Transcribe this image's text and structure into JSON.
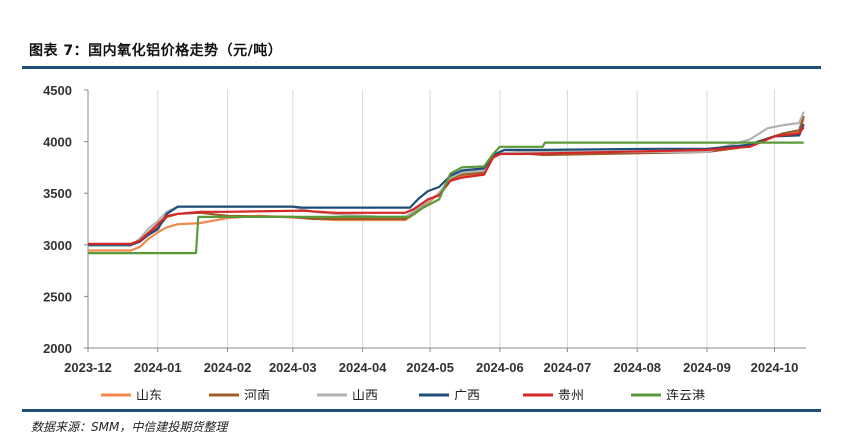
{
  "header": {
    "title": "图表 7：国内氧化铝价格走势（元/吨）"
  },
  "footer": {
    "source": "数据来源：SMM，中信建投期货整理"
  },
  "chart_data": {
    "type": "line",
    "title": "图表 7：国内氧化铝价格走势（元/吨）",
    "xlabel": "",
    "ylabel": "",
    "ylim": [
      2000,
      4500
    ],
    "yticks": [
      2000,
      2500,
      3000,
      3500,
      4000,
      4500
    ],
    "xlim": [
      "2023-12-01",
      "2024-10-15"
    ],
    "xticks": [
      "2023-12",
      "2024-01",
      "2024-02",
      "2024-03",
      "2024-04",
      "2024-05",
      "2024-06",
      "2024-07",
      "2024-08",
      "2024-09",
      "2024-10"
    ],
    "grid": "vertical",
    "legend": "bottom",
    "series": [
      {
        "name": "山东",
        "color": "#f4874b",
        "points": [
          [
            "2023-12-01",
            2945
          ],
          [
            "2023-12-20",
            2945
          ],
          [
            "2023-12-24",
            2980
          ],
          [
            "2023-12-28",
            3060
          ],
          [
            "2024-01-01",
            3120
          ],
          [
            "2024-01-05",
            3170
          ],
          [
            "2024-01-10",
            3200
          ],
          [
            "2024-01-20",
            3210
          ],
          [
            "2024-02-01",
            3260
          ],
          [
            "2024-02-15",
            3280
          ],
          [
            "2024-03-05",
            3260
          ],
          [
            "2024-03-20",
            3240
          ],
          [
            "2024-04-20",
            3240
          ],
          [
            "2024-04-24",
            3300
          ],
          [
            "2024-04-30",
            3400
          ],
          [
            "2024-05-05",
            3500
          ],
          [
            "2024-05-10",
            3640
          ],
          [
            "2024-05-15",
            3660
          ],
          [
            "2024-05-25",
            3700
          ],
          [
            "2024-05-29",
            3840
          ],
          [
            "2024-06-01",
            3880
          ],
          [
            "2024-06-10",
            3890
          ],
          [
            "2024-06-25",
            3880
          ],
          [
            "2024-09-01",
            3900
          ],
          [
            "2024-09-15",
            3940
          ],
          [
            "2024-09-25",
            4000
          ],
          [
            "2024-10-05",
            4080
          ],
          [
            "2024-10-12",
            4100
          ],
          [
            "2024-10-14",
            4220
          ]
        ]
      },
      {
        "name": "河南",
        "color": "#9c5d2b",
        "points": [
          [
            "2023-12-01",
            3000
          ],
          [
            "2023-12-20",
            3000
          ],
          [
            "2023-12-24",
            3030
          ],
          [
            "2023-12-28",
            3100
          ],
          [
            "2024-01-01",
            3170
          ],
          [
            "2024-01-05",
            3270
          ],
          [
            "2024-01-10",
            3300
          ],
          [
            "2024-01-20",
            3310
          ],
          [
            "2024-02-01",
            3280
          ],
          [
            "2024-03-01",
            3270
          ],
          [
            "2024-03-10",
            3250
          ],
          [
            "2024-04-20",
            3250
          ],
          [
            "2024-04-24",
            3320
          ],
          [
            "2024-04-30",
            3420
          ],
          [
            "2024-05-05",
            3500
          ],
          [
            "2024-05-10",
            3640
          ],
          [
            "2024-05-15",
            3680
          ],
          [
            "2024-05-25",
            3700
          ],
          [
            "2024-05-29",
            3850
          ],
          [
            "2024-06-01",
            3880
          ],
          [
            "2024-06-10",
            3890
          ],
          [
            "2024-06-20",
            3870
          ],
          [
            "2024-09-01",
            3900
          ],
          [
            "2024-09-15",
            3940
          ],
          [
            "2024-09-25",
            4010
          ],
          [
            "2024-10-05",
            4080
          ],
          [
            "2024-10-12",
            4110
          ],
          [
            "2024-10-14",
            4250
          ]
        ]
      },
      {
        "name": "山西",
        "color": "#b2b2b2",
        "points": [
          [
            "2023-12-01",
            2990
          ],
          [
            "2023-12-20",
            2990
          ],
          [
            "2023-12-24",
            3060
          ],
          [
            "2023-12-28",
            3160
          ],
          [
            "2024-01-01",
            3230
          ],
          [
            "2024-01-05",
            3320
          ],
          [
            "2024-01-10",
            3370
          ],
          [
            "2024-01-20",
            3370
          ],
          [
            "2024-03-01",
            3370
          ],
          [
            "2024-03-10",
            3320
          ],
          [
            "2024-03-25",
            3290
          ],
          [
            "2024-04-10",
            3270
          ],
          [
            "2024-04-20",
            3270
          ],
          [
            "2024-04-24",
            3330
          ],
          [
            "2024-04-30",
            3420
          ],
          [
            "2024-05-05",
            3500
          ],
          [
            "2024-05-10",
            3650
          ],
          [
            "2024-05-15",
            3700
          ],
          [
            "2024-05-25",
            3720
          ],
          [
            "2024-05-29",
            3860
          ],
          [
            "2024-06-01",
            3890
          ],
          [
            "2024-06-10",
            3900
          ],
          [
            "2024-09-01",
            3900
          ],
          [
            "2024-09-10",
            3960
          ],
          [
            "2024-09-20",
            4020
          ],
          [
            "2024-09-28",
            4130
          ],
          [
            "2024-10-05",
            4160
          ],
          [
            "2024-10-12",
            4180
          ],
          [
            "2024-10-14",
            4290
          ]
        ]
      },
      {
        "name": "广西",
        "color": "#1f4e79",
        "points": [
          [
            "2023-12-01",
            3000
          ],
          [
            "2023-12-20",
            3000
          ],
          [
            "2023-12-24",
            3030
          ],
          [
            "2023-12-28",
            3100
          ],
          [
            "2024-01-01",
            3150
          ],
          [
            "2024-01-05",
            3300
          ],
          [
            "2024-01-10",
            3370
          ],
          [
            "2024-03-01",
            3370
          ],
          [
            "2024-03-05",
            3360
          ],
          [
            "2024-04-22",
            3360
          ],
          [
            "2024-04-26",
            3450
          ],
          [
            "2024-04-30",
            3520
          ],
          [
            "2024-05-05",
            3560
          ],
          [
            "2024-05-10",
            3670
          ],
          [
            "2024-05-15",
            3720
          ],
          [
            "2024-05-25",
            3740
          ],
          [
            "2024-05-29",
            3870
          ],
          [
            "2024-06-03",
            3920
          ],
          [
            "2024-06-20",
            3920
          ],
          [
            "2024-08-10",
            3930
          ],
          [
            "2024-09-01",
            3930
          ],
          [
            "2024-09-20",
            3970
          ],
          [
            "2024-10-01",
            4050
          ],
          [
            "2024-10-12",
            4060
          ],
          [
            "2024-10-14",
            4170
          ]
        ]
      },
      {
        "name": "贵州",
        "color": "#d62728",
        "points": [
          [
            "2023-12-01",
            3010
          ],
          [
            "2023-12-20",
            3010
          ],
          [
            "2023-12-24",
            3040
          ],
          [
            "2023-12-28",
            3120
          ],
          [
            "2024-01-01",
            3200
          ],
          [
            "2024-01-05",
            3280
          ],
          [
            "2024-01-10",
            3300
          ],
          [
            "2024-01-20",
            3320
          ],
          [
            "2024-02-01",
            3320
          ],
          [
            "2024-03-05",
            3330
          ],
          [
            "2024-03-20",
            3310
          ],
          [
            "2024-04-20",
            3310
          ],
          [
            "2024-04-24",
            3350
          ],
          [
            "2024-04-30",
            3440
          ],
          [
            "2024-05-05",
            3480
          ],
          [
            "2024-05-10",
            3620
          ],
          [
            "2024-05-15",
            3650
          ],
          [
            "2024-05-25",
            3680
          ],
          [
            "2024-05-29",
            3850
          ],
          [
            "2024-06-01",
            3880
          ],
          [
            "2024-06-10",
            3880
          ],
          [
            "2024-09-01",
            3920
          ],
          [
            "2024-09-20",
            3950
          ],
          [
            "2024-10-01",
            4050
          ],
          [
            "2024-10-12",
            4080
          ],
          [
            "2024-10-14",
            4140
          ]
        ]
      },
      {
        "name": "连云港",
        "color": "#5b9a3b",
        "points": [
          [
            "2023-12-01",
            2920
          ],
          [
            "2024-01-18",
            2920
          ],
          [
            "2024-01-19",
            3270
          ],
          [
            "2024-04-15",
            3270
          ],
          [
            "2024-04-22",
            3270
          ],
          [
            "2024-04-28",
            3360
          ],
          [
            "2024-05-05",
            3440
          ],
          [
            "2024-05-10",
            3690
          ],
          [
            "2024-05-15",
            3750
          ],
          [
            "2024-05-25",
            3760
          ],
          [
            "2024-05-29",
            3880
          ],
          [
            "2024-06-01",
            3950
          ],
          [
            "2024-06-20",
            3950
          ],
          [
            "2024-06-21",
            3990
          ],
          [
            "2024-10-14",
            3990
          ]
        ]
      }
    ]
  }
}
